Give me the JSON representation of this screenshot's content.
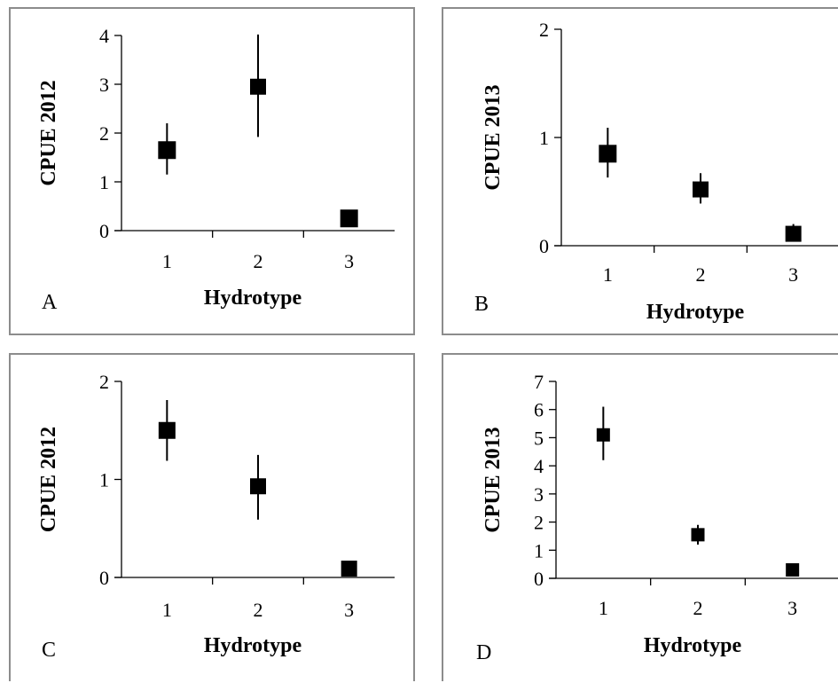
{
  "chart_data": [
    {
      "type": "scatter",
      "panel_label": "A",
      "xlabel": "Hydrotype",
      "ylabel": "CPUE 2012",
      "categories": [
        "1",
        "2",
        "3"
      ],
      "values": [
        1.65,
        2.95,
        0.25
      ],
      "error_low": [
        1.15,
        1.92,
        0.2
      ],
      "error_high": [
        2.2,
        4.02,
        0.3
      ],
      "ylim": [
        0,
        4
      ],
      "yticks": [
        "0",
        "1",
        "2",
        "3",
        "4"
      ],
      "marker": "square",
      "error_bars": "vertical",
      "color": "#000000"
    },
    {
      "type": "scatter",
      "panel_label": "B",
      "xlabel": "Hydrotype",
      "ylabel": "CPUE 2013",
      "categories": [
        "1",
        "2",
        "3"
      ],
      "values": [
        0.85,
        0.52,
        0.11
      ],
      "error_low": [
        0.63,
        0.39,
        0.06
      ],
      "error_high": [
        1.09,
        0.67,
        0.2
      ],
      "ylim": [
        0,
        2
      ],
      "yticks": [
        "0",
        "1",
        "2"
      ],
      "marker": "square",
      "error_bars": "vertical",
      "color": "#000000"
    },
    {
      "type": "scatter",
      "panel_label": "C",
      "xlabel": "Hydrotype",
      "ylabel": "CPUE 2012",
      "categories": [
        "1",
        "2",
        "3"
      ],
      "values": [
        1.5,
        0.93,
        0.09
      ],
      "error_low": [
        1.19,
        0.59,
        0.05
      ],
      "error_high": [
        1.81,
        1.25,
        0.13
      ],
      "ylim": [
        0,
        2
      ],
      "yticks": [
        "0",
        "1",
        "2"
      ],
      "marker": "square",
      "error_bars": "vertical",
      "color": "#000000"
    },
    {
      "type": "scatter",
      "panel_label": "D",
      "xlabel": "Hydrotype",
      "ylabel": "CPUE 2013",
      "categories": [
        "1",
        "2",
        "3"
      ],
      "values": [
        5.1,
        1.55,
        0.3
      ],
      "error_low": [
        4.2,
        1.2,
        0.2
      ],
      "error_high": [
        6.1,
        1.9,
        0.4
      ],
      "ylim": [
        0,
        7
      ],
      "yticks": [
        "0",
        "1",
        "2",
        "3",
        "4",
        "5",
        "6",
        "7"
      ],
      "marker": "square",
      "error_bars": "vertical",
      "color": "#000000"
    }
  ]
}
